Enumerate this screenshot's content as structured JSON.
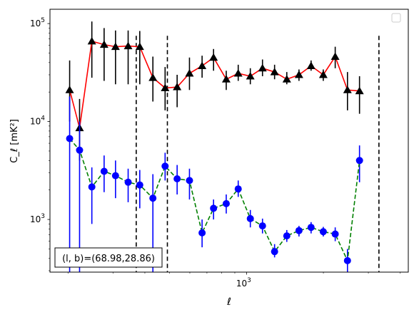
{
  "chart_data": {
    "type": "line",
    "xscale": "log",
    "yscale": "log",
    "xlabel": "ℓ",
    "ylabel": "C_ℓ [mK²]",
    "x_tick_labels": [
      {
        "value": 1000,
        "base": "10",
        "exp": "3"
      }
    ],
    "y_tick_labels": [
      {
        "value": 1000,
        "base": "10",
        "exp": "3"
      },
      {
        "value": 10000,
        "base": "10",
        "exp": "4"
      },
      {
        "value": 100000,
        "base": "10",
        "exp": "5"
      }
    ],
    "xlim": [
      170,
      4300
    ],
    "ylim": [
      290,
      140000
    ],
    "annotation": "(l, b)=(68.98,28.86)",
    "legend": {
      "position": "upper right",
      "entries": []
    },
    "vlines": [
      370,
      490,
      3300
    ],
    "series": [
      {
        "color": "#ff0000",
        "marker": "triangle",
        "marker_color": "#000000",
        "errorbar_color": "#000000",
        "linestyle": "solid",
        "points": [
          {
            "x": 203,
            "y": 21000,
            "lo": 10000,
            "hi": 42000
          },
          {
            "x": 222,
            "y": 8600,
            "lo": 4000,
            "hi": 17000
          },
          {
            "x": 248,
            "y": 66000,
            "lo": 28000,
            "hi": 105000
          },
          {
            "x": 277,
            "y": 61000,
            "lo": 26000,
            "hi": 90000
          },
          {
            "x": 307,
            "y": 58000,
            "lo": 24000,
            "hi": 85000
          },
          {
            "x": 344,
            "y": 59000,
            "lo": 24000,
            "hi": 85000
          },
          {
            "x": 382,
            "y": 58000,
            "lo": 24000,
            "hi": 84000
          },
          {
            "x": 430,
            "y": 28000,
            "lo": 16000,
            "hi": 46000
          },
          {
            "x": 480,
            "y": 22000,
            "lo": 13000,
            "hi": 36000
          },
          {
            "x": 535,
            "y": 22500,
            "lo": 14000,
            "hi": 30000
          },
          {
            "x": 598,
            "y": 31000,
            "lo": 21000,
            "hi": 45000
          },
          {
            "x": 670,
            "y": 37000,
            "lo": 28000,
            "hi": 47000
          },
          {
            "x": 743,
            "y": 45000,
            "lo": 33000,
            "hi": 55000
          },
          {
            "x": 833,
            "y": 27000,
            "lo": 21000,
            "hi": 33000
          },
          {
            "x": 928,
            "y": 31000,
            "lo": 26000,
            "hi": 38000
          },
          {
            "x": 1035,
            "y": 29000,
            "lo": 24000,
            "hi": 35000
          },
          {
            "x": 1155,
            "y": 35000,
            "lo": 29000,
            "hi": 43000
          },
          {
            "x": 1288,
            "y": 32000,
            "lo": 27000,
            "hi": 38000
          },
          {
            "x": 1438,
            "y": 27000,
            "lo": 24000,
            "hi": 32000
          },
          {
            "x": 1605,
            "y": 30000,
            "lo": 26000,
            "hi": 34000
          },
          {
            "x": 1790,
            "y": 37000,
            "lo": 33000,
            "hi": 42000
          },
          {
            "x": 1998,
            "y": 30000,
            "lo": 26000,
            "hi": 34000
          },
          {
            "x": 2225,
            "y": 46000,
            "lo": 35000,
            "hi": 58000
          },
          {
            "x": 2485,
            "y": 21000,
            "lo": 13000,
            "hi": 32000
          },
          {
            "x": 2770,
            "y": 20500,
            "lo": 12000,
            "hi": 29000
          }
        ]
      },
      {
        "color": "#008000",
        "marker": "circle",
        "marker_color": "#0000ff",
        "errorbar_color": "#0000ff",
        "linestyle": "dashed",
        "points": [
          {
            "x": 203,
            "y": 6700,
            "lo": 290,
            "hi": 18000
          },
          {
            "x": 222,
            "y": 5100,
            "lo": 290,
            "hi": 10000
          },
          {
            "x": 248,
            "y": 2150,
            "lo": 900,
            "hi": 3400
          },
          {
            "x": 277,
            "y": 3100,
            "lo": 1900,
            "hi": 4500
          },
          {
            "x": 307,
            "y": 2800,
            "lo": 1650,
            "hi": 4000
          },
          {
            "x": 344,
            "y": 2400,
            "lo": 1500,
            "hi": 3300
          },
          {
            "x": 382,
            "y": 2250,
            "lo": 1300,
            "hi": 3200
          },
          {
            "x": 430,
            "y": 1650,
            "lo": 290,
            "hi": 2900
          },
          {
            "x": 480,
            "y": 3500,
            "lo": 2500,
            "hi": 4800
          },
          {
            "x": 535,
            "y": 2600,
            "lo": 1800,
            "hi": 3600
          },
          {
            "x": 598,
            "y": 2500,
            "lo": 1600,
            "hi": 3300
          },
          {
            "x": 670,
            "y": 730,
            "lo": 520,
            "hi": 1000
          },
          {
            "x": 743,
            "y": 1300,
            "lo": 1000,
            "hi": 1600
          },
          {
            "x": 833,
            "y": 1450,
            "lo": 1150,
            "hi": 1800
          },
          {
            "x": 928,
            "y": 2050,
            "lo": 1700,
            "hi": 2500
          },
          {
            "x": 1035,
            "y": 1020,
            "lo": 830,
            "hi": 1250
          },
          {
            "x": 1155,
            "y": 860,
            "lo": 720,
            "hi": 1020
          },
          {
            "x": 1288,
            "y": 470,
            "lo": 410,
            "hi": 560
          },
          {
            "x": 1438,
            "y": 680,
            "lo": 590,
            "hi": 780
          },
          {
            "x": 1605,
            "y": 770,
            "lo": 670,
            "hi": 860
          },
          {
            "x": 1790,
            "y": 830,
            "lo": 720,
            "hi": 940
          },
          {
            "x": 1998,
            "y": 750,
            "lo": 670,
            "hi": 840
          },
          {
            "x": 2225,
            "y": 710,
            "lo": 600,
            "hi": 830
          },
          {
            "x": 2485,
            "y": 380,
            "lo": 290,
            "hi": 500
          },
          {
            "x": 2770,
            "y": 4000,
            "lo": 2400,
            "hi": 5700
          }
        ]
      }
    ]
  }
}
